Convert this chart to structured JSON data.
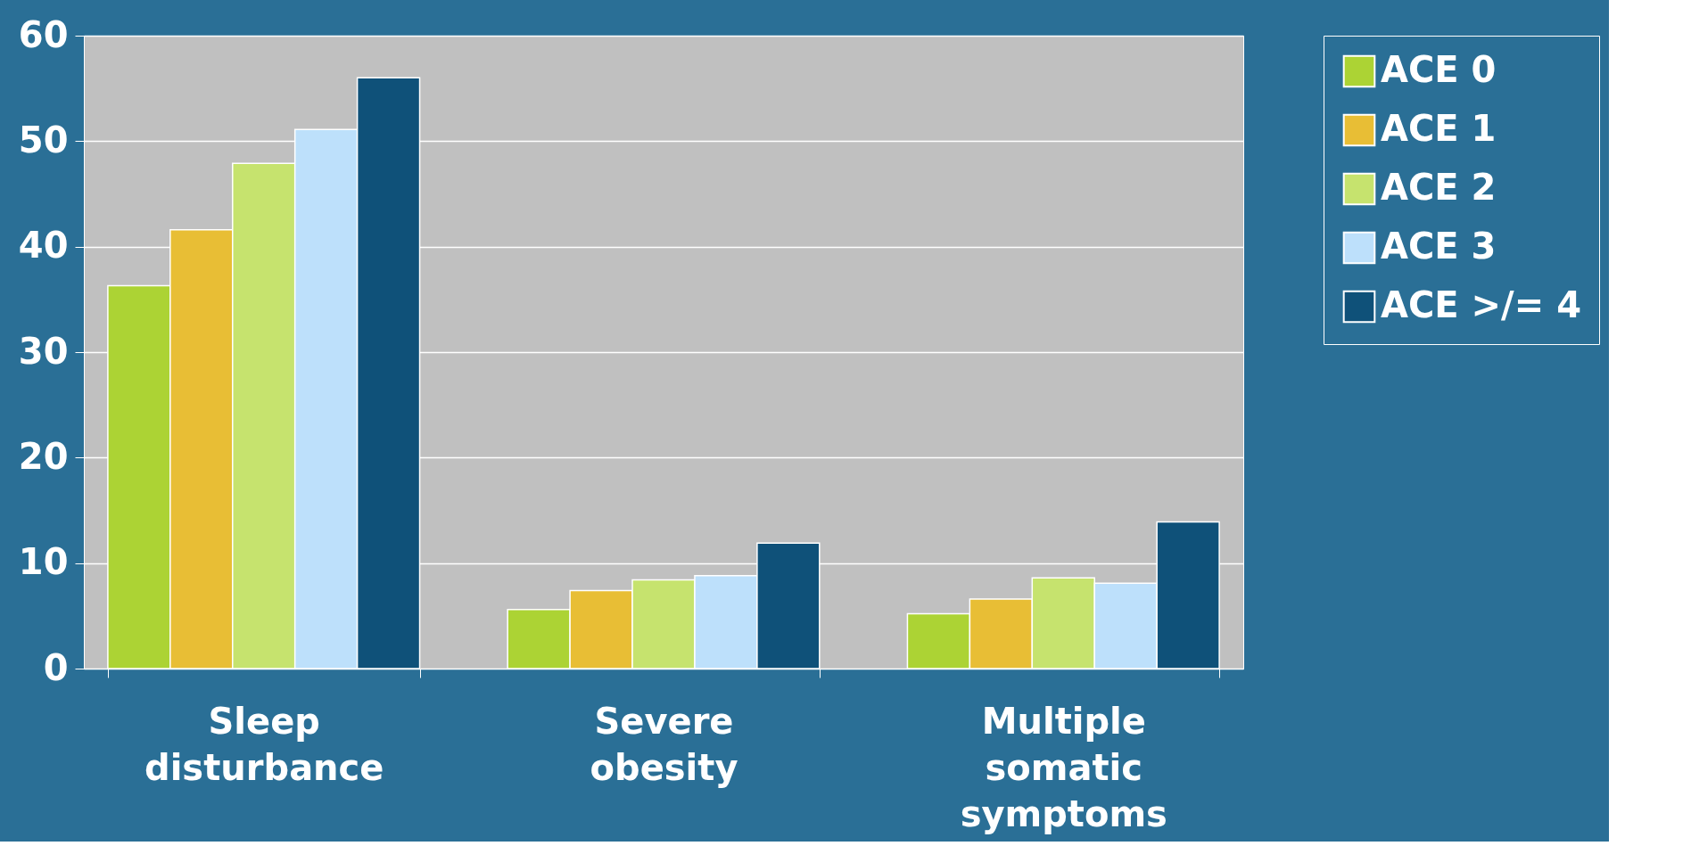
{
  "chart_data": {
    "type": "bar",
    "categories": [
      "Sleep disturbance",
      "Severe obesity",
      "Multiple somatic symptoms"
    ],
    "series": [
      {
        "name": "ACE 0",
        "color": "#acd334",
        "values": [
          36.3,
          5.6,
          5.2
        ]
      },
      {
        "name": "ACE 1",
        "color": "#e8be35",
        "values": [
          41.6,
          7.4,
          6.6
        ]
      },
      {
        "name": "ACE 2",
        "color": "#c6e36e",
        "values": [
          47.9,
          8.4,
          8.6
        ]
      },
      {
        "name": "ACE 3",
        "color": "#bde0fb",
        "values": [
          51.1,
          8.8,
          8.1
        ]
      },
      {
        "name": "ACE >/= 4",
        "color": "#0f5179",
        "values": [
          56.0,
          11.9,
          13.9
        ]
      }
    ],
    "ylim": [
      0,
      60
    ],
    "yticks": [
      0,
      10,
      20,
      30,
      40,
      50,
      60
    ],
    "grid": "y",
    "legend": "right"
  }
}
